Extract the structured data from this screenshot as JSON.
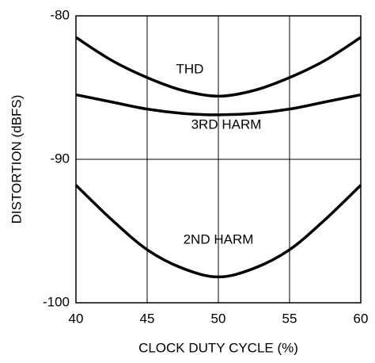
{
  "chart_data": {
    "type": "line",
    "xlabel": "CLOCK DUTY CYCLE (%)",
    "ylabel": "DISTORTION (dBFS)",
    "x": [
      40,
      42.5,
      45,
      47.5,
      50,
      52.5,
      55,
      57.5,
      60
    ],
    "series": [
      {
        "name": "THD",
        "color": "#000000",
        "values": [
          -81.5,
          -83.1,
          -84.3,
          -85.2,
          -85.6,
          -85.2,
          -84.3,
          -83.1,
          -81.5
        ]
      },
      {
        "name": "3RD HARM",
        "color": "#000000",
        "values": [
          -85.5,
          -86.0,
          -86.5,
          -86.8,
          -86.9,
          -86.8,
          -86.5,
          -86.0,
          -85.5
        ]
      },
      {
        "name": "2ND HARM",
        "color": "#000000",
        "values": [
          -91.8,
          -94.2,
          -96.3,
          -97.6,
          -98.2,
          -97.6,
          -96.3,
          -94.2,
          -91.8
        ]
      }
    ],
    "xlim": [
      40,
      60
    ],
    "xticks": [
      40,
      45,
      50,
      55,
      60
    ],
    "ylim": [
      -100,
      -80
    ],
    "yticks": [
      -100,
      -90,
      -80
    ],
    "grid": true
  }
}
